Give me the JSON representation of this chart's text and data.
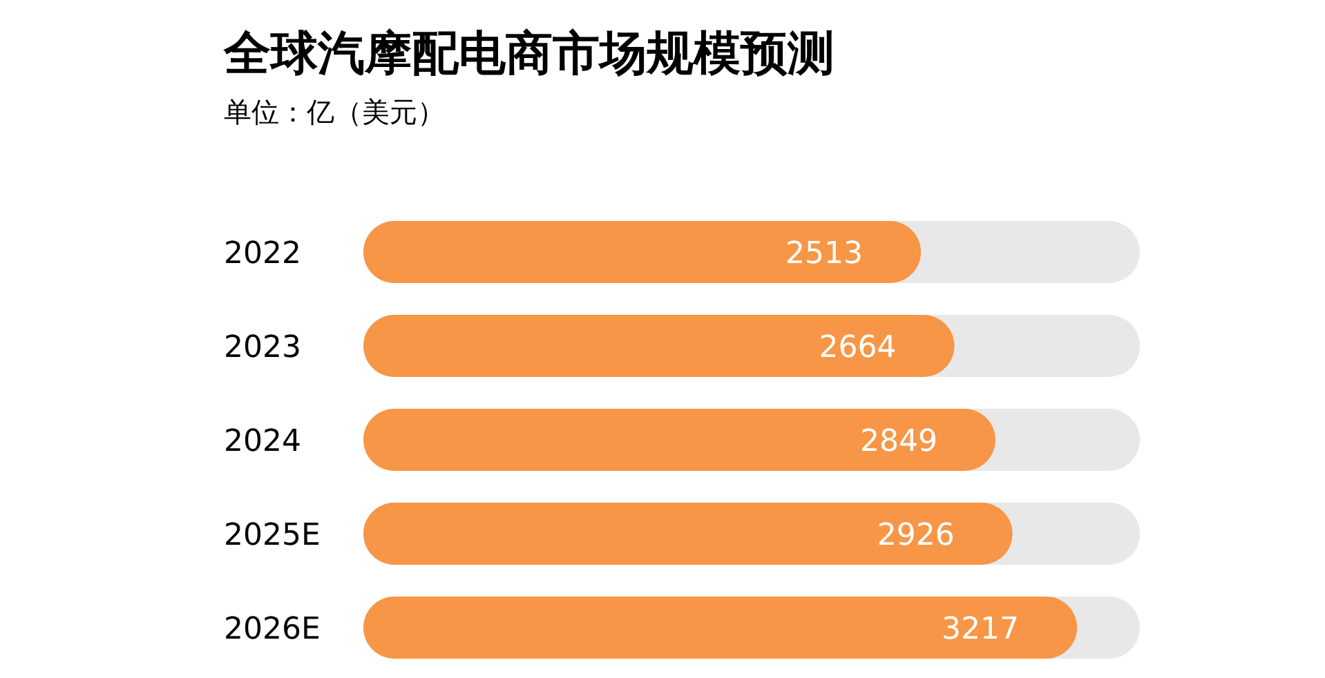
{
  "chart_data": {
    "type": "bar",
    "orientation": "horizontal",
    "title": "全球汽摩配电商市场规模预测",
    "subtitle": "单位：亿（美元）",
    "categories": [
      "2022",
      "2023",
      "2024",
      "2025E",
      "2026E"
    ],
    "values": [
      2513,
      2664,
      2849,
      2926,
      3217
    ],
    "color": "#f79646",
    "xlim": [
      0,
      3500
    ],
    "data_labels": true
  }
}
